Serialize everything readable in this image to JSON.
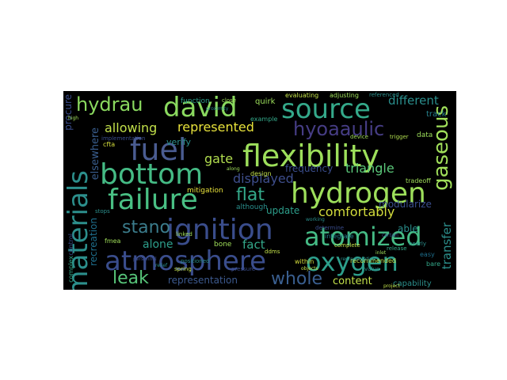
{
  "word_cloud": {
    "words": [
      {
        "text": "flexibility",
        "color": "#9ddf5b"
      },
      {
        "text": "hydrogen",
        "color": "#9ddf5b"
      },
      {
        "text": "atomized",
        "color": "#45bb85"
      },
      {
        "text": "oxygen",
        "color": "#2d9f8c"
      },
      {
        "text": "atmosphere",
        "color": "#3a4d8c"
      },
      {
        "text": "ignition",
        "color": "#3a4d8c"
      },
      {
        "text": "failure",
        "color": "#49c084"
      },
      {
        "text": "bottom",
        "color": "#45bb85"
      },
      {
        "text": "fuel",
        "color": "#4a5c91"
      },
      {
        "text": "david",
        "color": "#8ad95f"
      },
      {
        "text": "source",
        "color": "#34a98a"
      },
      {
        "text": "materials",
        "color": "#2c8f8c"
      },
      {
        "text": "gaseous",
        "color": "#a0df5a"
      },
      {
        "text": "hyoaaulic",
        "color": "#463d85"
      },
      {
        "text": "hydrau",
        "color": "#8ad95f"
      },
      {
        "text": "whole",
        "color": "#3a5f90"
      },
      {
        "text": "leak",
        "color": "#57c579"
      },
      {
        "text": "stano",
        "color": "#3b7c8c"
      },
      {
        "text": "flat",
        "color": "#34a98a"
      },
      {
        "text": "comfortably",
        "color": "#d4dd3c"
      },
      {
        "text": "represented",
        "color": "#e8e23b"
      },
      {
        "text": "allowing",
        "color": "#c2e04a"
      },
      {
        "text": "triangle",
        "color": "#5bc87a"
      },
      {
        "text": "displayed",
        "color": "#3e4e8c"
      },
      {
        "text": "different",
        "color": "#2a8e8c"
      },
      {
        "text": "gate",
        "color": "#b2de4f"
      },
      {
        "text": "alone",
        "color": "#2d9f8c"
      },
      {
        "text": "fact",
        "color": "#34a98a"
      },
      {
        "text": "content",
        "color": "#c2e04a"
      },
      {
        "text": "representation",
        "color": "#3d5a8f"
      },
      {
        "text": "transfer",
        "color": "#2c8f8c"
      },
      {
        "text": "able",
        "color": "#2a8e8c"
      },
      {
        "text": "modularize",
        "color": "#3a4d8c"
      },
      {
        "text": "capability",
        "color": "#2c8f8c"
      },
      {
        "text": "update",
        "color": "#2d9f8c"
      },
      {
        "text": "elsewhere",
        "color": "#3a5f90"
      },
      {
        "text": "recreation",
        "color": "#1e6e8c"
      },
      {
        "text": "frequency",
        "color": "#3a4d8c"
      },
      {
        "text": "verify",
        "color": "#2c8f8c"
      },
      {
        "text": "procure",
        "color": "#3a4d8c"
      },
      {
        "text": "track",
        "color": "#27828e"
      },
      {
        "text": "data",
        "color": "#9ddf5b"
      },
      {
        "text": "quirk",
        "color": "#9ddf5b"
      },
      {
        "text": "design",
        "color": "#c2e04a"
      },
      {
        "text": "bone",
        "color": "#a0df5a"
      },
      {
        "text": "although",
        "color": "#2a8e8c"
      },
      {
        "text": "mitigation",
        "color": "#e8e23b"
      },
      {
        "text": "implementation",
        "color": "#3a4d8c"
      },
      {
        "text": "function",
        "color": "#2d9f8c"
      },
      {
        "text": "evaluating",
        "color": "#c2e04a"
      },
      {
        "text": "adjusting",
        "color": "#9ddf5b"
      },
      {
        "text": "referenced",
        "color": "#2c8f8c"
      },
      {
        "text": "recommended",
        "color": "#c2e04a"
      },
      {
        "text": "integrate",
        "color": "#27828e"
      },
      {
        "text": "complete",
        "color": "#c2e04a"
      },
      {
        "text": "release",
        "color": "#34a98a"
      },
      {
        "text": "tradeoff",
        "color": "#a0df5a"
      },
      {
        "text": "device",
        "color": "#a0df5a"
      },
      {
        "text": "trigger",
        "color": "#b2de4f"
      },
      {
        "text": "easy",
        "color": "#1e6e8c"
      },
      {
        "text": "bare",
        "color": "#34a98a"
      },
      {
        "text": "nearly",
        "color": "#2c8f8c"
      },
      {
        "text": "fmea",
        "color": "#a0df5a"
      },
      {
        "text": "linked",
        "color": "#a0df5a"
      },
      {
        "text": "positioned",
        "color": "#2a8e8c"
      },
      {
        "text": "spring",
        "color": "#c2e04a"
      },
      {
        "text": "pressure",
        "color": "#3a4d8c"
      },
      {
        "text": "control",
        "color": "#3a4d8c"
      },
      {
        "text": "complex",
        "color": "#34a98a"
      },
      {
        "text": "within",
        "color": "#d4dd3c"
      },
      {
        "text": "determine",
        "color": "#3a4d8c"
      },
      {
        "text": "example",
        "color": "#34a98a"
      },
      {
        "text": "close",
        "color": "#a0df5a"
      },
      {
        "text": "cfta",
        "color": "#d4dd3c"
      },
      {
        "text": "stops",
        "color": "#2c8f8c"
      },
      {
        "text": "value",
        "color": "#2a8e8c"
      },
      {
        "text": "ddms",
        "color": "#c2e04a"
      },
      {
        "text": "proximity",
        "color": "#2c8f8c"
      },
      {
        "text": "along",
        "color": "#a0df5a"
      },
      {
        "text": "inlet",
        "color": "#a0df5a"
      },
      {
        "text": "personnel",
        "color": "#3a4d8c"
      },
      {
        "text": "relief",
        "color": "#2a8e8c"
      },
      {
        "text": "representative",
        "color": "#2c8f8c"
      },
      {
        "text": "objects",
        "color": "#c2e04a"
      },
      {
        "text": "certain",
        "color": "#3a4d8c"
      },
      {
        "text": "high",
        "color": "#a0df5a"
      },
      {
        "text": "working",
        "color": "#2a8e8c"
      },
      {
        "text": "project",
        "color": "#c2e04a"
      }
    ]
  }
}
